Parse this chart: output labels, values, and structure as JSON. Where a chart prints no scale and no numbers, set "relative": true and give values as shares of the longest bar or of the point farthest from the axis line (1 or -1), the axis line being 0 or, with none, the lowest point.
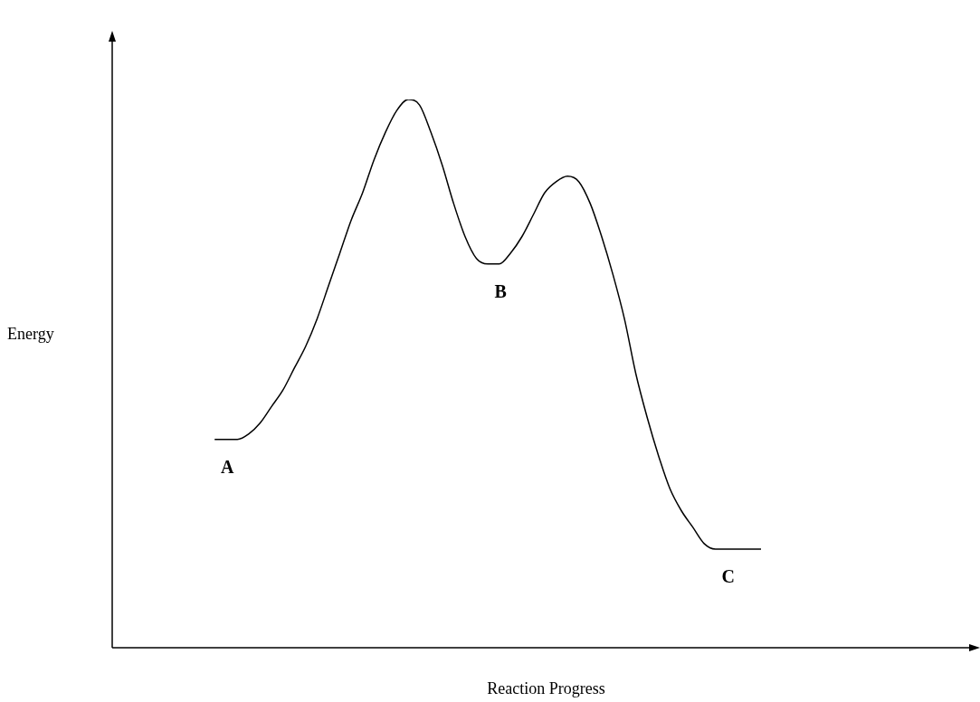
{
  "chart_data": {
    "type": "line",
    "xlabel": "Reaction Progress",
    "ylabel": "Energy",
    "relative": true,
    "color": "#000000",
    "categories": [
      null,
      null,
      null,
      null,
      null,
      null,
      null,
      null,
      null,
      null,
      null,
      null,
      null,
      null,
      null,
      null,
      null,
      null,
      null,
      null,
      null,
      null,
      null,
      null,
      null,
      null,
      null,
      null,
      null,
      null,
      null,
      null,
      null,
      null,
      null,
      null,
      null,
      null,
      null,
      null,
      null,
      null,
      null,
      null,
      null,
      null,
      null,
      null,
      null,
      null,
      null,
      null,
      null,
      null,
      null,
      null,
      null,
      null,
      null,
      null,
      null,
      null,
      null,
      null,
      null,
      null,
      null,
      null,
      null,
      null,
      null,
      null,
      null,
      null,
      null,
      null,
      null
    ],
    "values": [
      null,
      null,
      null,
      null,
      null,
      null,
      null,
      null,
      null,
      0.38,
      0.38,
      0.38,
      0.39,
      0.41,
      0.44,
      0.47,
      0.51,
      0.55,
      0.6,
      0.66,
      0.72,
      0.78,
      0.83,
      0.89,
      0.94,
      0.98,
      1,
      0.99,
      0.94,
      0.88,
      0.81,
      0.75,
      0.71,
      0.7,
      0.7,
      0.72,
      0.75,
      0.79,
      0.83,
      0.85,
      0.86,
      0.85,
      0.81,
      0.75,
      0.68,
      0.6,
      0.5,
      0.42,
      0.35,
      0.29,
      0.25,
      0.22,
      0.19,
      0.18,
      0.18,
      0.18,
      0.18,
      0.18,
      null,
      null,
      null,
      null,
      null,
      null,
      null,
      null,
      null,
      null,
      null,
      null,
      null,
      null,
      null,
      null,
      null,
      null,
      null
    ],
    "annotations": [
      "A",
      "B",
      "C"
    ]
  }
}
